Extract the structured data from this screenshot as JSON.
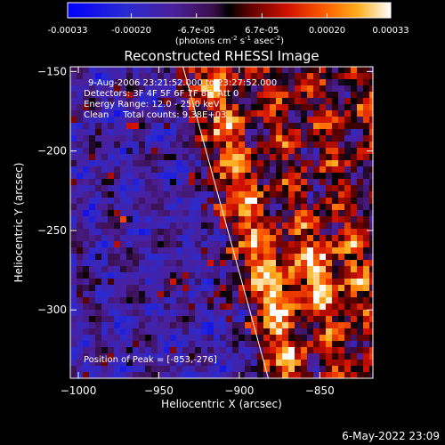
{
  "colorbar": {
    "tick_labels": [
      "-0.00033",
      "-0.00020",
      "-6.7e-05",
      "6.7e-05",
      "0.00020",
      "0.00033"
    ],
    "tick_values": [
      -0.00033,
      -0.0002,
      -6.7e-05,
      6.7e-05,
      0.0002,
      0.00033
    ],
    "range": [
      -0.00033,
      0.00033
    ],
    "units_label_main": "(photons cm",
    "units_sup1": "-2",
    "units_mid1": " s",
    "units_sup2": "-1",
    "units_mid2": " asec",
    "units_sup3": "-2",
    "units_end": ")"
  },
  "chart_data": {
    "type": "heatmap",
    "title": "Reconstructed RHESSI Image",
    "xlabel": "Heliocentric X (arcsec)",
    "ylabel": "Heliocentric Y (arcsec)",
    "xlim": [
      -1005,
      -817
    ],
    "ylim": [
      -343,
      -147
    ],
    "x_ticks": [
      -1000,
      -950,
      -900,
      -850
    ],
    "y_ticks": [
      -150,
      -200,
      -250,
      -300
    ],
    "x_tick_labels": [
      "−1000",
      "−950",
      "−900",
      "−850"
    ],
    "y_tick_labels": [
      "−150",
      "−200",
      "−250",
      "−300"
    ],
    "limb_line": {
      "x": [
        -935,
        -882
      ],
      "y": [
        -147,
        -343
      ]
    },
    "annotations": [
      "9-Aug-2006 23:21:52.000 to 23:27:52.000",
      "Detectors: 3F 4F 5F 6F 7F 8F, Att 0",
      "Energy Range: 12.0 - 25.0 keV",
      "Clean     Total counts: 9.38E+03"
    ],
    "peak_label": "Position of Peak = [-853,-276]",
    "peak": [
      -853,
      -276
    ]
  },
  "footer": {
    "timestamp": "6-May-2022 23:09"
  }
}
